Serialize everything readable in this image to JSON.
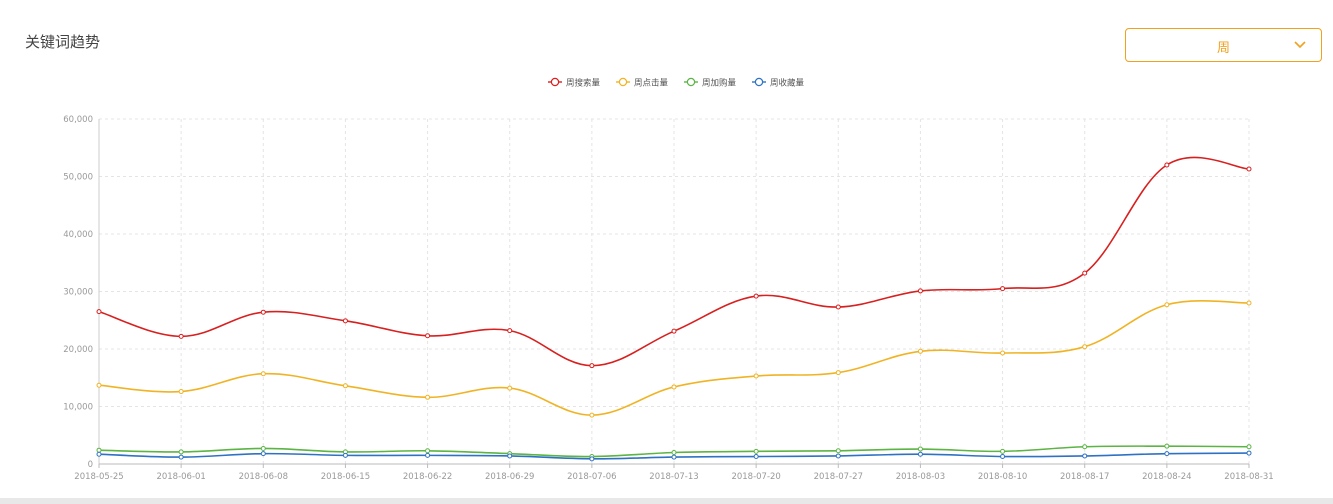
{
  "header": {
    "title": "关键词趋势"
  },
  "period_select": {
    "value": "周"
  },
  "colors": {
    "accent": "#f0a11e"
  },
  "chart_data": {
    "type": "line",
    "title": "",
    "xlabel": "",
    "ylabel": "",
    "ylim": [
      0,
      60000
    ],
    "yticks": [
      0,
      10000,
      20000,
      30000,
      40000,
      50000,
      60000
    ],
    "ytick_labels": [
      "0",
      "10,000",
      "20,000",
      "30,000",
      "40,000",
      "50,000",
      "60,000"
    ],
    "grid": true,
    "legend": "top-center",
    "categories": [
      "2018-05-25",
      "2018-06-01",
      "2018-06-08",
      "2018-06-15",
      "2018-06-22",
      "2018-06-29",
      "2018-07-06",
      "2018-07-13",
      "2018-07-20",
      "2018-07-27",
      "2018-08-03",
      "2018-08-10",
      "2018-08-17",
      "2018-08-24",
      "2018-08-31"
    ],
    "series": [
      {
        "name": "周搜索量",
        "color": "#d7201f",
        "values": [
          26500,
          22200,
          26400,
          24900,
          22300,
          23200,
          17100,
          23100,
          29200,
          27300,
          30100,
          30500,
          33200,
          52000,
          51300
        ]
      },
      {
        "name": "周点击量",
        "color": "#f0b324",
        "values": [
          13700,
          12600,
          15700,
          13600,
          11600,
          13200,
          8500,
          13400,
          15300,
          15900,
          19600,
          19300,
          20400,
          27700,
          28000
        ]
      },
      {
        "name": "周加购量",
        "color": "#5bb444",
        "values": [
          2400,
          2100,
          2700,
          2100,
          2300,
          1800,
          1300,
          2000,
          2200,
          2300,
          2600,
          2200,
          3000,
          3100,
          3000
        ]
      },
      {
        "name": "周收藏量",
        "color": "#2f72c4",
        "values": [
          1700,
          1200,
          1800,
          1500,
          1500,
          1400,
          900,
          1200,
          1300,
          1400,
          1700,
          1300,
          1400,
          1800,
          1900
        ]
      }
    ]
  }
}
